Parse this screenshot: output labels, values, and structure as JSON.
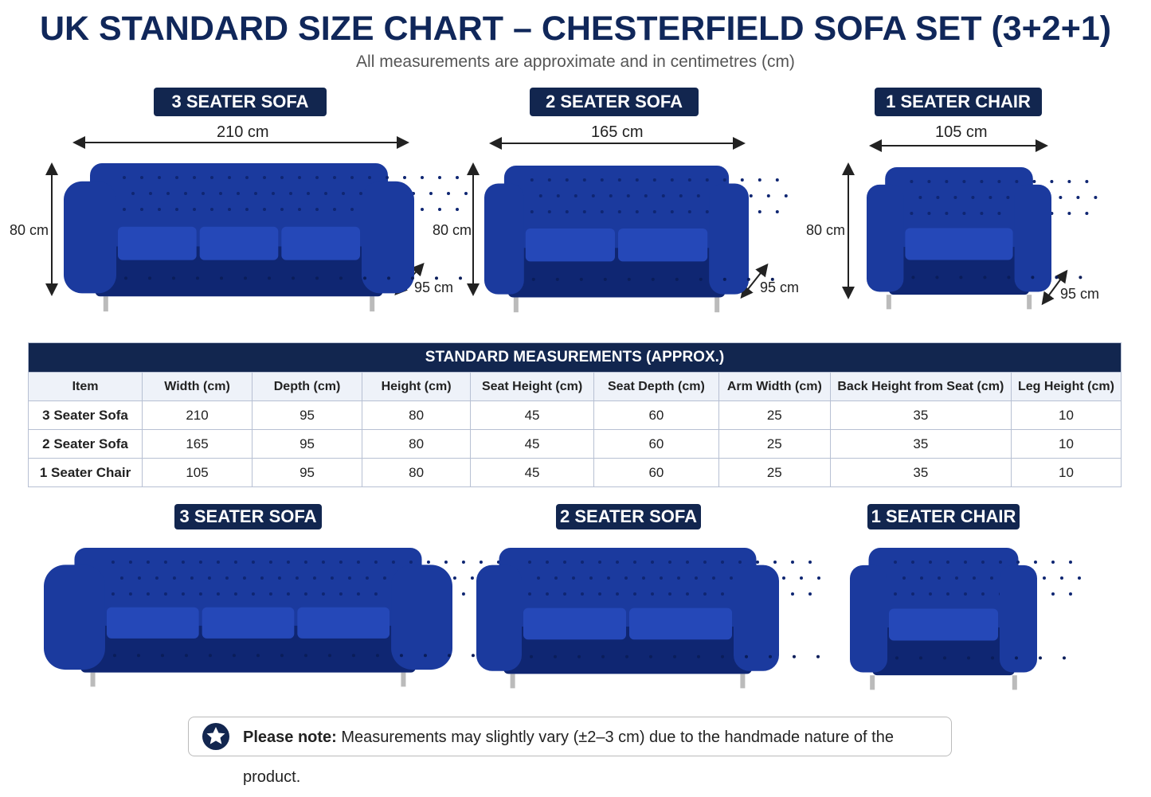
{
  "header": {
    "title": "UK STANDARD SIZE CHART – CHESTERFIELD SOFA SET (3+2+1)",
    "subtitle": "All measurements are approximate and in centimetres (cm)"
  },
  "top_products": [
    {
      "label": "3 SEATER SOFA",
      "width": "210 cm",
      "height": "80 cm",
      "depth": "95 cm"
    },
    {
      "label": "2 SEATER SOFA",
      "width": "165 cm",
      "height": "80 cm",
      "depth": "95 cm"
    },
    {
      "label": "1 SEATER CHAIR",
      "width": "105 cm",
      "height": "80 cm",
      "depth": "95 cm"
    }
  ],
  "table": {
    "title": "STANDARD MEASUREMENTS (APPROX.)",
    "columns": [
      "Item",
      "Width (cm)",
      "Depth (cm)",
      "Height (cm)",
      "Seat Height (cm)",
      "Seat Depth (cm)",
      "Arm Width (cm)",
      "Back Height from Seat (cm)",
      "Leg Height (cm)"
    ],
    "rows": [
      [
        "3 Seater Sofa",
        210,
        95,
        80,
        45,
        60,
        25,
        35,
        10
      ],
      [
        "2 Seater Sofa",
        165,
        95,
        80,
        45,
        60,
        25,
        35,
        10
      ],
      [
        "1 Seater Chair",
        105,
        95,
        80,
        45,
        60,
        25,
        35,
        10
      ]
    ]
  },
  "bottom_products": [
    {
      "label": "3 SEATER SOFA"
    },
    {
      "label": "2 SEATER SOFA"
    },
    {
      "label": "1 SEATER CHAIR"
    }
  ],
  "note": {
    "label": "Please note:",
    "text": "Measurements may slightly vary (±2–3 cm) due to the handmade nature of the product."
  }
}
